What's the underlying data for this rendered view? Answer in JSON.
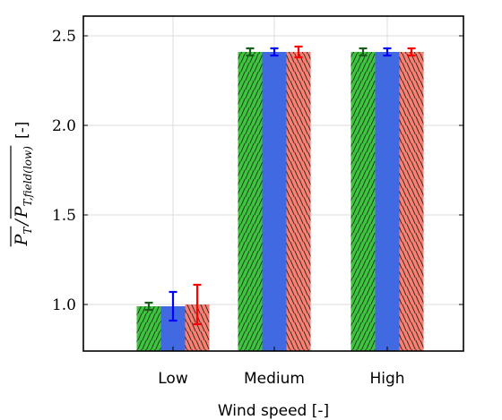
{
  "chart_data": {
    "type": "bar",
    "categories": [
      "Low",
      "Medium",
      "High"
    ],
    "series": [
      {
        "values": [
          0.99,
          2.41,
          2.41
        ],
        "errors": [
          0.02,
          0.02,
          0.02
        ],
        "color": "#3ec43e",
        "hatch": "forward-diagonal",
        "error_color": "#1a5c1a"
      },
      {
        "values": [
          0.99,
          2.41,
          2.41
        ],
        "errors": [
          0.08,
          0.02,
          0.02
        ],
        "color": "#4169e1",
        "hatch": "none",
        "error_color": "#0000ff"
      },
      {
        "values": [
          1.0,
          2.41,
          2.41
        ],
        "errors": [
          0.11,
          0.03,
          0.02
        ],
        "color": "#fa8072",
        "hatch": "back-diagonal",
        "error_color": "#ff0000"
      }
    ],
    "xlabel": "Wind speed [-]",
    "ylabel": {
      "num": "P",
      "num_sub": "T",
      "slash": "/",
      "den": "P",
      "den_sub": "T,field(low)",
      "unit": "[-]"
    },
    "ylim": [
      0.74,
      2.61
    ],
    "yticks": [
      1.0,
      1.5,
      2.0,
      2.5
    ],
    "ytick_labels": [
      "1.0",
      "1.5",
      "2.0",
      "2.5"
    ],
    "grid": true
  }
}
